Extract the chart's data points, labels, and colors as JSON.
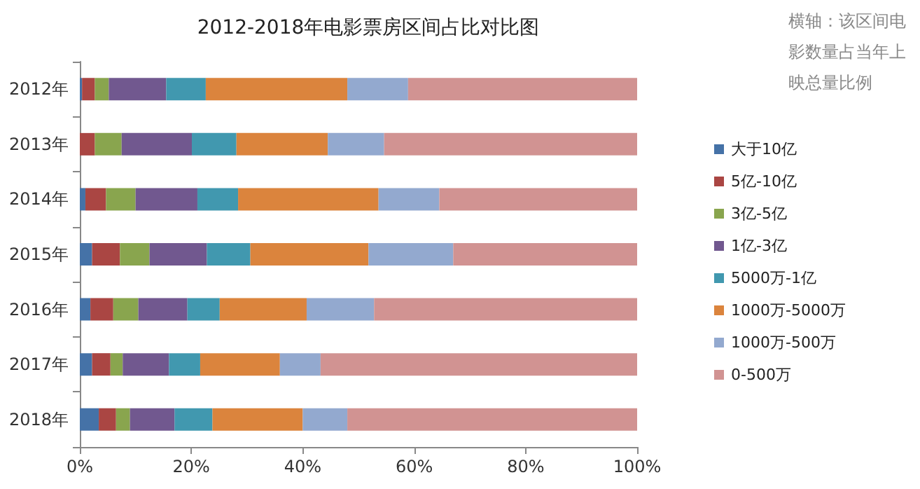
{
  "chart_data": {
    "type": "bar",
    "orientation": "horizontal",
    "stacked": true,
    "title": "2012-2018年电影票房区间占比对比图",
    "annotations": [
      "横轴：该区间电影数量占当年上映总量比例"
    ],
    "categories": [
      "2012年",
      "2013年",
      "2014年",
      "2015年",
      "2016年",
      "2017年",
      "2018年"
    ],
    "series": [
      {
        "name": "大于10亿",
        "color": "#4572a7",
        "values": [
          0.4,
          0,
          1.0,
          2.2,
          1.9,
          2.2,
          3.4
        ]
      },
      {
        "name": "5亿-10亿",
        "color": "#aa4643",
        "values": [
          2.3,
          2.7,
          3.7,
          5.0,
          4.1,
          3.3,
          3.1
        ]
      },
      {
        "name": "3亿-5亿",
        "color": "#89a54e",
        "values": [
          2.5,
          4.8,
          5.3,
          5.3,
          4.5,
          2.2,
          2.5
        ]
      },
      {
        "name": "1亿-3亿",
        "color": "#71588f",
        "values": [
          10.3,
          12.6,
          11.1,
          10.3,
          8.8,
          8.3,
          8.0
        ]
      },
      {
        "name": "5000万-1亿",
        "color": "#4198af",
        "values": [
          7.1,
          8.0,
          7.3,
          7.8,
          5.8,
          5.6,
          6.8
        ]
      },
      {
        "name": "1000万-5000万",
        "color": "#db843d",
        "values": [
          25.4,
          16.4,
          25.2,
          21.2,
          15.6,
          14.3,
          16.2
        ]
      },
      {
        "name": "1000万-500万",
        "color": "#93a9cf",
        "values": [
          10.9,
          10.1,
          10.9,
          15.2,
          12.1,
          7.3,
          8.0
        ]
      },
      {
        "name": "0-500万",
        "color": "#d19392",
        "values": [
          41.1,
          45.4,
          35.5,
          33.0,
          47.2,
          56.8,
          52.0
        ]
      }
    ],
    "xlim": [
      0,
      100
    ],
    "xticks": [
      {
        "value": 0,
        "label": "0%"
      },
      {
        "value": 20,
        "label": "20%"
      },
      {
        "value": 40,
        "label": "40%"
      },
      {
        "value": 60,
        "label": "60%"
      },
      {
        "value": 80,
        "label": "80%"
      },
      {
        "value": 100,
        "label": "100%"
      }
    ],
    "legend": "right",
    "grid": false
  }
}
